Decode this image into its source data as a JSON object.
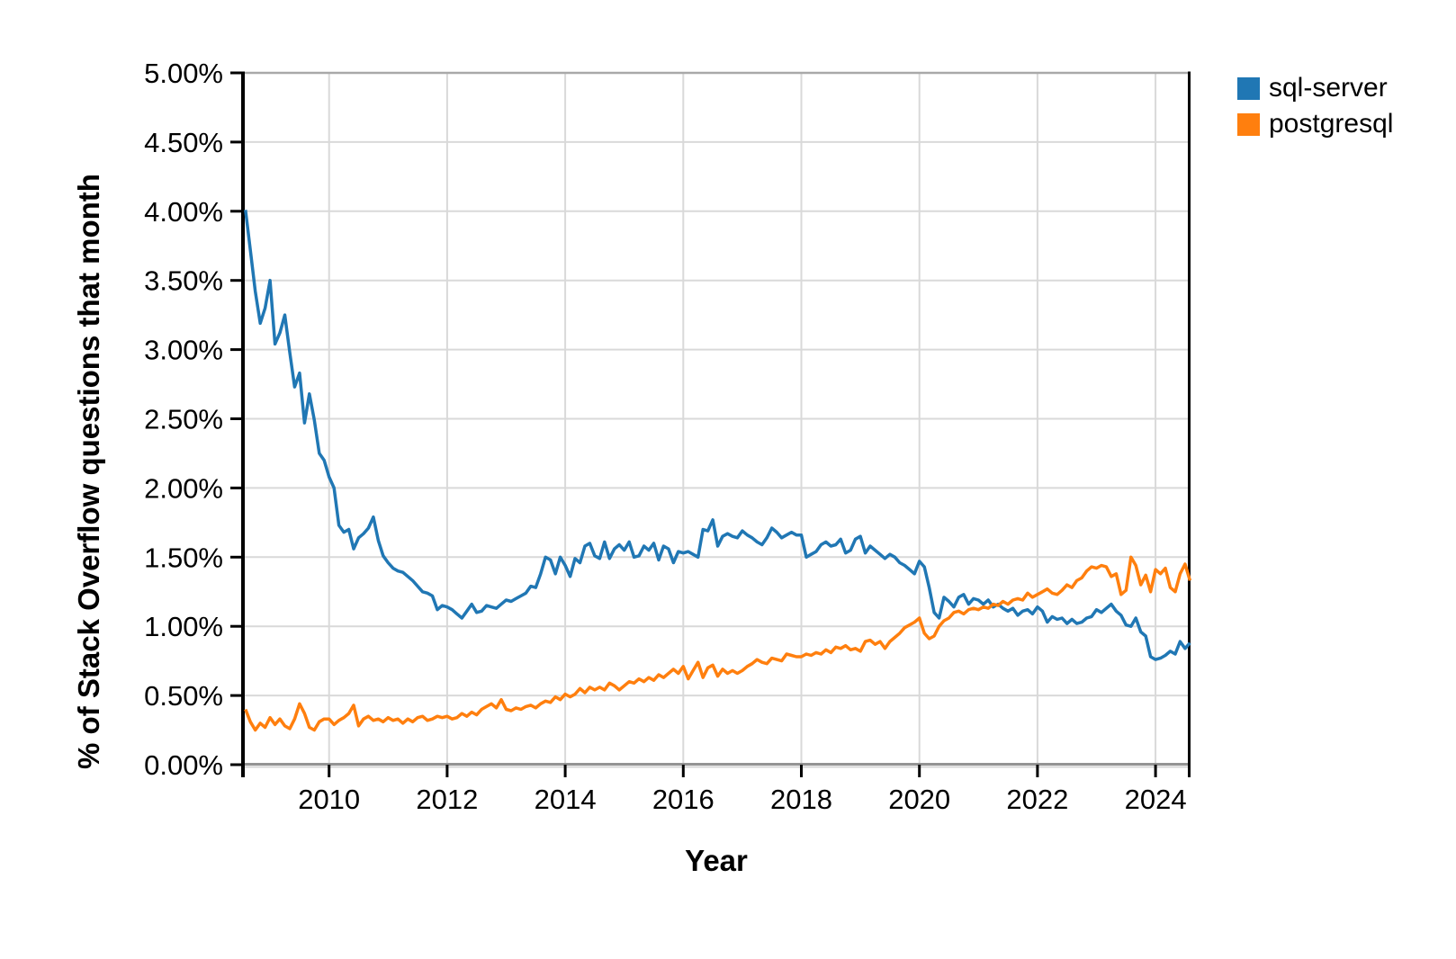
{
  "page": {
    "background": "#ffffff"
  },
  "chart_data": {
    "type": "line",
    "title": "",
    "xlabel": "Year",
    "ylabel": "% of Stack Overflow questions that month",
    "x_unit": "monthly",
    "x_start_decimal_year": 2008.5833,
    "x_end_decimal_year": 2024.5833,
    "x_tick_labels": [
      "2010",
      "2012",
      "2014",
      "2016",
      "2018",
      "2020",
      "2022",
      "2024"
    ],
    "y_ticks": [
      {
        "label": "0.00%",
        "value": 0.0
      },
      {
        "label": "0.50%",
        "value": 0.5
      },
      {
        "label": "1.00%",
        "value": 1.0
      },
      {
        "label": "1.50%",
        "value": 1.5
      },
      {
        "label": "2.00%",
        "value": 2.0
      },
      {
        "label": "2.50%",
        "value": 2.5
      },
      {
        "label": "3.00%",
        "value": 3.0
      },
      {
        "label": "3.50%",
        "value": 3.5
      },
      {
        "label": "4.00%",
        "value": 4.0
      },
      {
        "label": "4.50%",
        "value": 4.5
      },
      {
        "label": "5.00%",
        "value": 5.0
      }
    ],
    "ylim": [
      0,
      5
    ],
    "grid": true,
    "legend_position": "top-right-outside",
    "colors": {
      "gridline": "#d9d9d9",
      "top_border": "#a9a9a9",
      "bottom_axis": "#949494",
      "bottom_axis_shadow": "#d6d6d6",
      "axis_black": "#000000",
      "text": "#000000"
    },
    "series": [
      {
        "name": "sql-server",
        "color": "#2077b4",
        "values": [
          4.01,
          3.72,
          3.42,
          3.19,
          3.3,
          3.5,
          3.04,
          3.12,
          3.25,
          2.98,
          2.73,
          2.83,
          2.47,
          2.68,
          2.49,
          2.25,
          2.2,
          2.08,
          2.0,
          1.73,
          1.68,
          1.7,
          1.56,
          1.64,
          1.67,
          1.71,
          1.79,
          1.62,
          1.51,
          1.46,
          1.42,
          1.4,
          1.39,
          1.36,
          1.33,
          1.29,
          1.25,
          1.24,
          1.22,
          1.12,
          1.15,
          1.14,
          1.12,
          1.09,
          1.06,
          1.11,
          1.16,
          1.1,
          1.11,
          1.15,
          1.14,
          1.13,
          1.16,
          1.19,
          1.18,
          1.2,
          1.22,
          1.24,
          1.29,
          1.28,
          1.38,
          1.5,
          1.48,
          1.38,
          1.5,
          1.44,
          1.36,
          1.49,
          1.46,
          1.58,
          1.6,
          1.51,
          1.49,
          1.61,
          1.49,
          1.56,
          1.59,
          1.55,
          1.61,
          1.5,
          1.51,
          1.58,
          1.55,
          1.6,
          1.48,
          1.58,
          1.56,
          1.46,
          1.54,
          1.53,
          1.54,
          1.52,
          1.5,
          1.7,
          1.69,
          1.77,
          1.58,
          1.65,
          1.67,
          1.65,
          1.64,
          1.69,
          1.66,
          1.64,
          1.61,
          1.59,
          1.64,
          1.71,
          1.68,
          1.64,
          1.66,
          1.68,
          1.66,
          1.66,
          1.5,
          1.52,
          1.54,
          1.59,
          1.61,
          1.58,
          1.59,
          1.63,
          1.53,
          1.55,
          1.63,
          1.65,
          1.53,
          1.58,
          1.55,
          1.52,
          1.49,
          1.52,
          1.5,
          1.46,
          1.44,
          1.41,
          1.38,
          1.47,
          1.43,
          1.28,
          1.1,
          1.06,
          1.21,
          1.18,
          1.14,
          1.21,
          1.23,
          1.16,
          1.2,
          1.19,
          1.16,
          1.19,
          1.14,
          1.16,
          1.13,
          1.11,
          1.13,
          1.08,
          1.11,
          1.12,
          1.09,
          1.14,
          1.11,
          1.03,
          1.07,
          1.05,
          1.06,
          1.02,
          1.05,
          1.02,
          1.03,
          1.06,
          1.07,
          1.12,
          1.1,
          1.13,
          1.16,
          1.11,
          1.08,
          1.01,
          1.0,
          1.06,
          0.96,
          0.93,
          0.78,
          0.76,
          0.77,
          0.79,
          0.82,
          0.8,
          0.89,
          0.84,
          0.88
        ]
      },
      {
        "name": "postgresql",
        "color": "#ff7f0e",
        "values": [
          0.4,
          0.31,
          0.25,
          0.3,
          0.27,
          0.34,
          0.29,
          0.33,
          0.28,
          0.26,
          0.33,
          0.44,
          0.37,
          0.27,
          0.25,
          0.31,
          0.33,
          0.33,
          0.29,
          0.32,
          0.34,
          0.37,
          0.43,
          0.28,
          0.33,
          0.35,
          0.32,
          0.33,
          0.31,
          0.34,
          0.32,
          0.33,
          0.3,
          0.33,
          0.31,
          0.34,
          0.35,
          0.32,
          0.33,
          0.35,
          0.34,
          0.35,
          0.33,
          0.34,
          0.37,
          0.35,
          0.38,
          0.36,
          0.4,
          0.42,
          0.44,
          0.41,
          0.47,
          0.4,
          0.39,
          0.41,
          0.4,
          0.42,
          0.43,
          0.41,
          0.44,
          0.46,
          0.45,
          0.49,
          0.47,
          0.51,
          0.49,
          0.51,
          0.55,
          0.52,
          0.56,
          0.54,
          0.56,
          0.54,
          0.59,
          0.57,
          0.54,
          0.57,
          0.6,
          0.59,
          0.62,
          0.6,
          0.63,
          0.61,
          0.65,
          0.63,
          0.66,
          0.69,
          0.66,
          0.71,
          0.62,
          0.68,
          0.74,
          0.63,
          0.7,
          0.72,
          0.64,
          0.69,
          0.66,
          0.68,
          0.66,
          0.68,
          0.71,
          0.73,
          0.76,
          0.74,
          0.73,
          0.77,
          0.76,
          0.75,
          0.8,
          0.79,
          0.78,
          0.78,
          0.8,
          0.79,
          0.81,
          0.8,
          0.83,
          0.81,
          0.85,
          0.84,
          0.86,
          0.83,
          0.84,
          0.82,
          0.89,
          0.9,
          0.87,
          0.89,
          0.84,
          0.89,
          0.92,
          0.95,
          0.99,
          1.01,
          1.03,
          1.06,
          0.95,
          0.91,
          0.93,
          1.0,
          1.04,
          1.06,
          1.1,
          1.11,
          1.09,
          1.12,
          1.13,
          1.12,
          1.14,
          1.13,
          1.16,
          1.15,
          1.18,
          1.16,
          1.19,
          1.2,
          1.19,
          1.24,
          1.21,
          1.23,
          1.25,
          1.27,
          1.24,
          1.23,
          1.26,
          1.3,
          1.28,
          1.33,
          1.35,
          1.4,
          1.43,
          1.42,
          1.44,
          1.43,
          1.36,
          1.38,
          1.23,
          1.26,
          1.5,
          1.44,
          1.3,
          1.37,
          1.25,
          1.41,
          1.38,
          1.42,
          1.28,
          1.25,
          1.38,
          1.45,
          1.33
        ]
      }
    ]
  }
}
